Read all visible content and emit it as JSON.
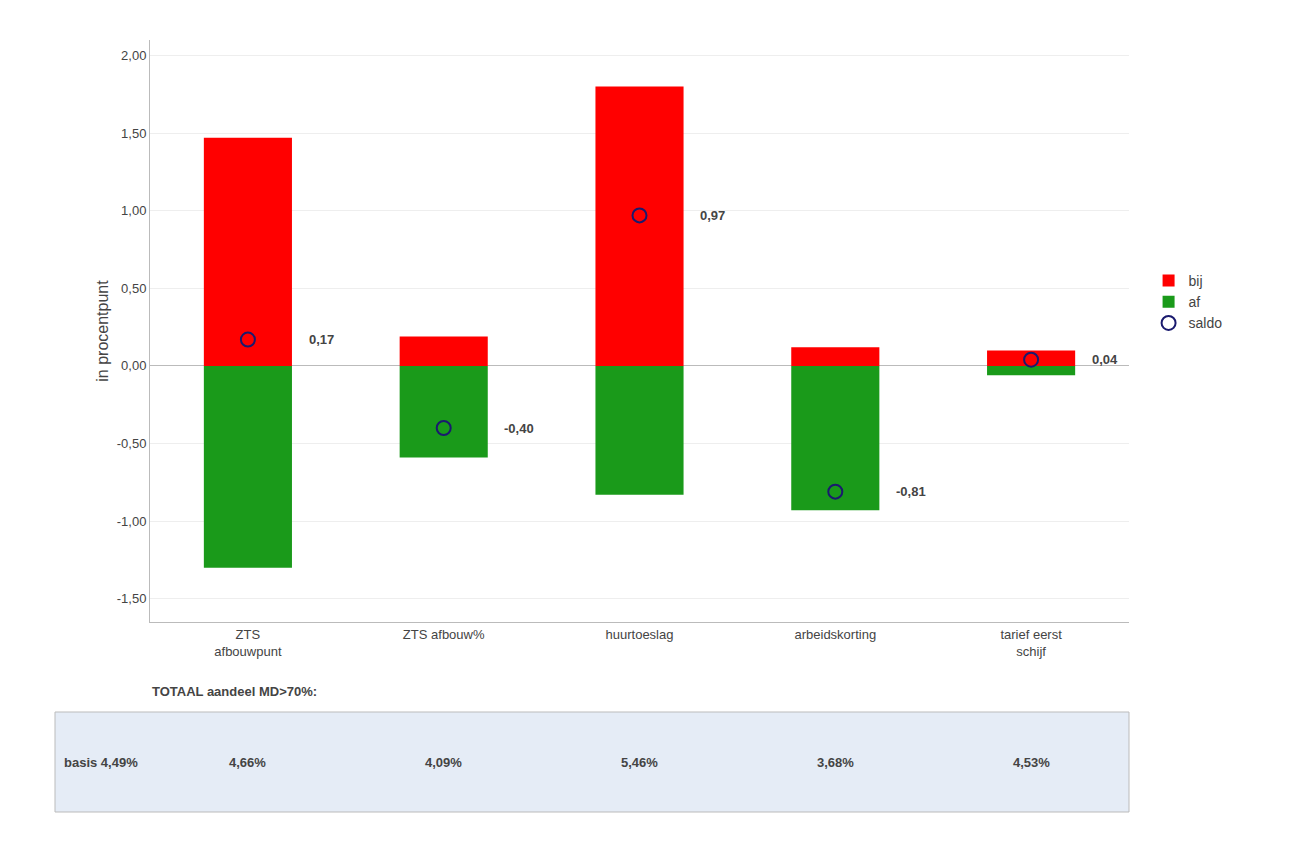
{
  "chart_data": {
    "type": "bar",
    "categories": [
      "ZTS\nafbouwpunt",
      "ZTS afbouw%",
      "huurtoeslag",
      "arbeidskorting",
      "tarief eerst\nschijf"
    ],
    "series": [
      {
        "name": "bij",
        "type": "bar",
        "color": "#FF0000",
        "values": [
          1.47,
          0.19,
          1.8,
          0.12,
          0.1
        ]
      },
      {
        "name": "af",
        "type": "bar",
        "color": "#1A9A1A",
        "values": [
          -1.3,
          -0.59,
          -0.83,
          -0.93,
          -0.06
        ]
      },
      {
        "name": "saldo",
        "type": "scatter",
        "marker": "circle-open",
        "color": "#1A1A6E",
        "values": [
          0.17,
          -0.4,
          0.97,
          -0.81,
          0.04
        ],
        "value_labels": [
          "0,17",
          "-0,40",
          "0,97",
          "-0,81",
          "0,04"
        ]
      }
    ],
    "data_labels": true,
    "ylabel": "in procentpunt",
    "ylim": [
      -1.65,
      2.1
    ],
    "yticks": [
      {
        "value": -1.5,
        "label": "-1,50"
      },
      {
        "value": -1.0,
        "label": "-1,00"
      },
      {
        "value": -0.5,
        "label": "-0,50"
      },
      {
        "value": 0.0,
        "label": "0,00"
      },
      {
        "value": 0.5,
        "label": "0,50"
      },
      {
        "value": 1.0,
        "label": "1,00"
      },
      {
        "value": 1.5,
        "label": "1,50"
      },
      {
        "value": 2.0,
        "label": "2,00"
      }
    ],
    "grid": true,
    "legend": "right",
    "annotations": [
      {
        "text": "TOTAAL aandeel MD>70%:"
      },
      {
        "text": "basis 4,49%"
      },
      {
        "text": "4,66%",
        "category": "ZTS\nafbouwpunt"
      },
      {
        "text": "4,09%",
        "category": "ZTS afbouw%"
      },
      {
        "text": "5,46%",
        "category": "huurtoeslag"
      },
      {
        "text": "3,68%",
        "category": "arbeidskorting"
      },
      {
        "text": "4,53%",
        "category": "tarief eerst\nschijf"
      }
    ]
  }
}
